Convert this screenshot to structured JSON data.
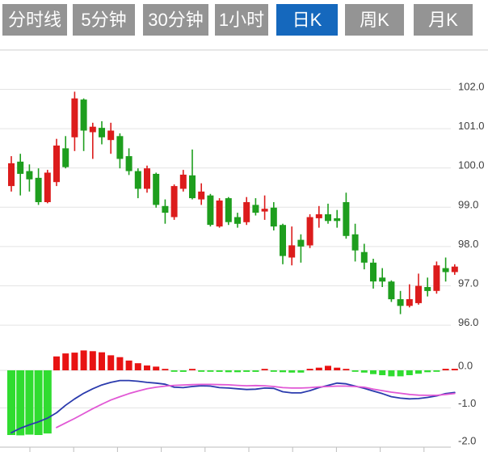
{
  "toolbar": {
    "tabs": [
      {
        "label": "分时线",
        "active": false
      },
      {
        "label": "5分钟",
        "active": false
      },
      {
        "label": "30分钟",
        "active": false
      },
      {
        "label": "1小时",
        "active": false
      },
      {
        "label": "日K",
        "active": true
      },
      {
        "label": "周K",
        "active": false
      },
      {
        "label": "月K",
        "active": false
      }
    ]
  },
  "colors": {
    "tab_bg": "#949494",
    "tab_active_bg": "#1568bd",
    "tab_text": "#ffffff",
    "candle_up": "#dc1c1c",
    "candle_down": "#1e9e1e",
    "hist_up": "#e81313",
    "hist_down": "#30dc30",
    "dif_line": "#2a3aad",
    "dea_line": "#e158d5",
    "grid": "#e4e4e4",
    "axis": "#bdbdbd",
    "border": "#cfcfcf",
    "label": "#3f3f3f"
  },
  "price_axis": {
    "labels": [
      {
        "text": "102.0",
        "value": 102
      },
      {
        "text": "101.0",
        "value": 101
      },
      {
        "text": "100.0",
        "value": 100
      },
      {
        "text": "99.0",
        "value": 99
      },
      {
        "text": "98.0",
        "value": 98
      },
      {
        "text": "97.0",
        "value": 97
      },
      {
        "text": "96.0",
        "value": 96
      }
    ]
  },
  "indicator_axis": {
    "labels": [
      {
        "text": "0.0",
        "value": 0
      },
      {
        "text": "-1.0",
        "value": -1
      },
      {
        "text": "-2.0",
        "value": -2
      }
    ]
  },
  "chart_data": {
    "type": "candlestick",
    "panels": [
      "price",
      "macd"
    ],
    "selected_timeframe": "日K",
    "price_range": [
      96,
      103
    ],
    "indicator_range": [
      -2,
      0.6
    ],
    "candle_columns": [
      "open",
      "close",
      "high",
      "low"
    ],
    "candles": [
      [
        99.54,
        100.12,
        100.3,
        99.4
      ],
      [
        100.16,
        99.85,
        100.36,
        99.3
      ],
      [
        99.92,
        99.71,
        100.09,
        99.4
      ],
      [
        99.75,
        99.13,
        99.99,
        99.06
      ],
      [
        99.13,
        99.88,
        99.95,
        99.1
      ],
      [
        99.64,
        100.57,
        100.74,
        99.54
      ],
      [
        100.5,
        100.02,
        100.81,
        99.99
      ],
      [
        100.78,
        101.77,
        101.94,
        100.43
      ],
      [
        101.74,
        100.95,
        101.77,
        100.43
      ],
      [
        100.91,
        101.05,
        101.15,
        100.23
      ],
      [
        101.02,
        100.78,
        101.19,
        100.6
      ],
      [
        100.71,
        100.95,
        101.15,
        100.36
      ],
      [
        100.81,
        100.23,
        100.88,
        99.99
      ],
      [
        100.3,
        99.92,
        100.5,
        99.82
      ],
      [
        99.92,
        99.47,
        99.99,
        99.23
      ],
      [
        99.47,
        99.99,
        100.06,
        99.37
      ],
      [
        99.85,
        99.06,
        99.88,
        98.99
      ],
      [
        99.03,
        98.86,
        99.2,
        98.58
      ],
      [
        98.75,
        99.54,
        99.58,
        98.68
      ],
      [
        99.47,
        99.83,
        99.95,
        99.4
      ],
      [
        99.81,
        99.23,
        100.47,
        99.2
      ],
      [
        99.2,
        99.4,
        99.61,
        99.06
      ],
      [
        99.3,
        98.55,
        99.34,
        98.51
      ],
      [
        98.51,
        99.17,
        99.23,
        98.48
      ],
      [
        99.23,
        98.62,
        99.26,
        98.55
      ],
      [
        98.75,
        98.58,
        98.86,
        98.48
      ],
      [
        98.62,
        99.13,
        99.26,
        98.55
      ],
      [
        99.06,
        98.86,
        99.23,
        98.79
      ],
      [
        98.89,
        98.96,
        99.3,
        98.68
      ],
      [
        98.99,
        98.51,
        99.13,
        98.41
      ],
      [
        98.55,
        97.76,
        98.58,
        97.55
      ],
      [
        97.72,
        98.03,
        98.51,
        97.52
      ],
      [
        98.17,
        98.0,
        98.31,
        97.59
      ],
      [
        98.03,
        98.75,
        98.82,
        97.96
      ],
      [
        98.72,
        98.82,
        99.03,
        98.48
      ],
      [
        98.82,
        98.65,
        99.09,
        98.58
      ],
      [
        98.72,
        98.65,
        98.93,
        98.48
      ],
      [
        99.13,
        98.27,
        99.37,
        98.2
      ],
      [
        98.31,
        97.9,
        98.58,
        97.62
      ],
      [
        97.86,
        97.59,
        98.07,
        97.42
      ],
      [
        97.59,
        97.11,
        97.69,
        96.93
      ],
      [
        97.21,
        97.11,
        97.45,
        96.97
      ],
      [
        97.11,
        96.66,
        97.14,
        96.59
      ],
      [
        96.66,
        96.49,
        96.87,
        96.28
      ],
      [
        96.49,
        96.66,
        97.04,
        96.45
      ],
      [
        96.56,
        97.0,
        97.31,
        96.52
      ],
      [
        96.97,
        96.87,
        97.21,
        96.73
      ],
      [
        96.87,
        97.52,
        97.62,
        96.8
      ],
      [
        97.45,
        97.35,
        97.72,
        97.11
      ],
      [
        97.35,
        97.49,
        97.55,
        97.28
      ]
    ],
    "macd": {
      "histogram": [
        -1.72,
        -1.73,
        -1.71,
        -1.72,
        -1.68,
        0.37,
        0.45,
        0.47,
        0.53,
        0.51,
        0.48,
        0.4,
        0.35,
        0.26,
        0.19,
        0.13,
        0.1,
        0.03,
        -0.03,
        -0.04,
        0.03,
        -0.01,
        -0.02,
        -0.04,
        -0.05,
        -0.05,
        -0.04,
        -0.04,
        0.03,
        -0.01,
        -0.05,
        -0.06,
        -0.06,
        0.04,
        0.07,
        0.12,
        0.07,
        0.03,
        -0.03,
        -0.06,
        -0.1,
        -0.13,
        -0.16,
        -0.16,
        -0.13,
        -0.09,
        -0.05,
        -0.03,
        0.04,
        0.04
      ],
      "dif": [
        -1.66,
        -1.54,
        -1.45,
        -1.37,
        -1.27,
        -1.13,
        -0.93,
        -0.76,
        -0.61,
        -0.49,
        -0.39,
        -0.32,
        -0.27,
        -0.27,
        -0.29,
        -0.32,
        -0.34,
        -0.37,
        -0.45,
        -0.46,
        -0.43,
        -0.41,
        -0.42,
        -0.46,
        -0.47,
        -0.49,
        -0.51,
        -0.5,
        -0.47,
        -0.48,
        -0.57,
        -0.6,
        -0.6,
        -0.54,
        -0.46,
        -0.4,
        -0.34,
        -0.36,
        -0.42,
        -0.48,
        -0.55,
        -0.62,
        -0.7,
        -0.74,
        -0.76,
        -0.75,
        -0.72,
        -0.68,
        -0.62,
        -0.59
      ],
      "dea": [
        null,
        null,
        null,
        null,
        null,
        -1.52,
        -1.4,
        -1.28,
        -1.15,
        -1.02,
        -0.9,
        -0.79,
        -0.7,
        -0.62,
        -0.55,
        -0.49,
        -0.45,
        -0.42,
        -0.4,
        -0.39,
        -0.38,
        -0.375,
        -0.375,
        -0.38,
        -0.385,
        -0.4,
        -0.41,
        -0.405,
        -0.41,
        -0.43,
        -0.46,
        -0.47,
        -0.47,
        -0.46,
        -0.44,
        -0.43,
        -0.42,
        -0.42,
        -0.43,
        -0.45,
        -0.5,
        -0.54,
        -0.58,
        -0.61,
        -0.64,
        -0.66,
        -0.665,
        -0.665,
        -0.64,
        -0.615
      ]
    }
  }
}
